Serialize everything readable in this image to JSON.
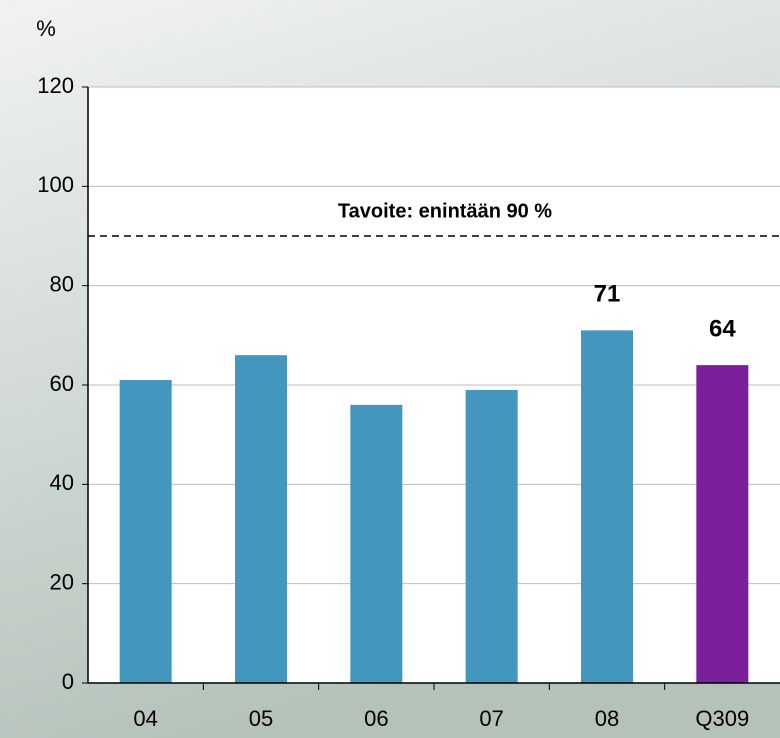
{
  "chart_data": {
    "type": "bar",
    "ylabel": "%",
    "categories": [
      "04",
      "05",
      "06",
      "07",
      "08",
      "Q309"
    ],
    "values": [
      61,
      66,
      56,
      59,
      71,
      64
    ],
    "value_labels": [
      null,
      null,
      null,
      null,
      "71",
      "64"
    ],
    "colors": [
      "#4396bd",
      "#4396bd",
      "#4396bd",
      "#4396bd",
      "#4396bd",
      "#7b1f9b"
    ],
    "ylim": [
      0,
      120
    ],
    "yticks": [
      0,
      20,
      40,
      60,
      80,
      100,
      120
    ],
    "grid": true,
    "target": {
      "value": 90,
      "label": "Tavoite: enintään 90 %"
    }
  }
}
